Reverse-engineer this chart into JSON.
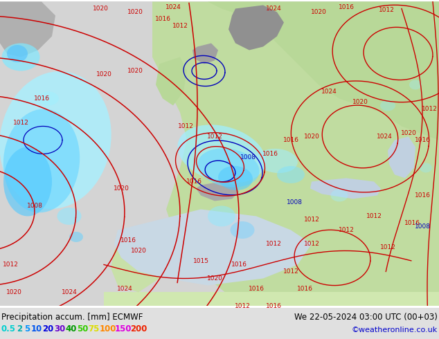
{
  "title_left": "Precipitation accum. [mm] ECMWF",
  "title_right": "We 22-05-2024 03:00 UTC (00+03)",
  "watermark": "©weatheronline.co.uk",
  "legend_values": [
    "0.5",
    "2",
    "5",
    "10",
    "20",
    "30",
    "40",
    "50",
    "75",
    "100",
    "150",
    "200"
  ],
  "legend_colors": [
    "#00ffff",
    "#00e0e0",
    "#00bfff",
    "#0080ff",
    "#0040ff",
    "#8000ff",
    "#00c000",
    "#80ff00",
    "#ffff00",
    "#ff8000",
    "#ff00ff",
    "#ff0000"
  ],
  "bg_ocean": "#d8d8d8",
  "bg_land_green": "#b8e0a0",
  "bg_land_light": "#e0e8d0",
  "bg_mountain": "#a8a8a8",
  "precip_light": "#a0f0ff",
  "precip_mid": "#60d0ff",
  "isobar_color": "#cc0000",
  "isobar_blue": "#0000cc",
  "text_color": "#000000",
  "bar_bg": "#e0e0e0",
  "figsize": [
    6.34,
    4.9
  ],
  "dpi": 100
}
